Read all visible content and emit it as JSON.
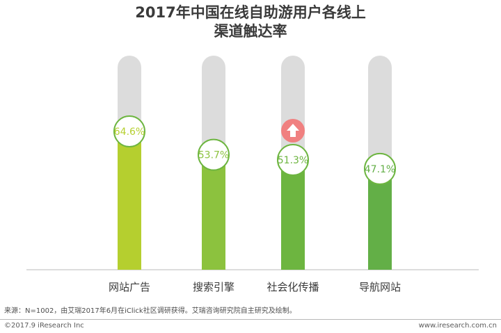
{
  "chart_data": {
    "type": "bar",
    "title": "2017年中国在线自助游用户各线上渠道触达率",
    "title_lines": [
      "2017年中国在线自助游用户各线上",
      "渠道触达率"
    ],
    "categories": [
      "网站广告",
      "搜索引擎",
      "社会化传播",
      "导航网站"
    ],
    "values": [
      64.6,
      53.7,
      51.3,
      47.1
    ],
    "value_labels": [
      "64.6%",
      "53.7%",
      "51.3%",
      "47.1%"
    ],
    "unit": "%",
    "ylim": [
      0,
      100
    ],
    "highlight_index": 2,
    "grid": false,
    "legend": "none"
  },
  "colors": {
    "bars": [
      "#b5cf2f",
      "#8cc23e",
      "#6db540",
      "#63af47"
    ],
    "track": "#dcdcdc",
    "label_border": "#6db540",
    "highlight": "#f08080",
    "text": "#3a3a3a"
  },
  "highlight_icon": "up-arrow-icon",
  "source": "来源：N=1002，由艾瑞2017年6月在iClick社区调研获得。艾瑞咨询研究院自主研究及绘制。",
  "footer": {
    "copyright": "©2017.9 iResearch Inc",
    "website": "www.iresearch.com.cn"
  }
}
